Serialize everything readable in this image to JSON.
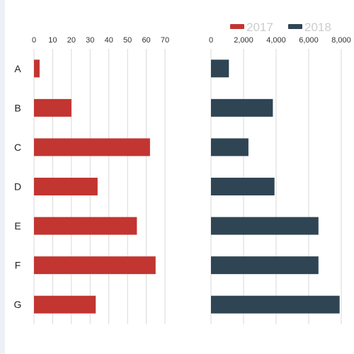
{
  "chart_data": {
    "type": "bar",
    "orientation": "horizontal",
    "categories": [
      "A",
      "B",
      "C",
      "D",
      "E",
      "F",
      "G"
    ],
    "series": [
      {
        "name": "2017",
        "color": "#c23531",
        "values": [
          3,
          20,
          62,
          34,
          55,
          65,
          33
        ],
        "xlim": [
          0,
          70
        ],
        "ticks": [
          0,
          10,
          20,
          30,
          40,
          50,
          60,
          70
        ]
      },
      {
        "name": "2018",
        "color": "#2f4554",
        "values": [
          1100,
          3800,
          2300,
          3900,
          6600,
          6600,
          7900
        ],
        "xlim": [
          0,
          8000
        ],
        "ticks": [
          0,
          2000,
          4000,
          6000,
          8000
        ]
      }
    ],
    "legend": {
      "position": "top-right",
      "text_color": "#cccccc",
      "items": [
        "2017",
        "2018"
      ]
    },
    "grid": true
  }
}
